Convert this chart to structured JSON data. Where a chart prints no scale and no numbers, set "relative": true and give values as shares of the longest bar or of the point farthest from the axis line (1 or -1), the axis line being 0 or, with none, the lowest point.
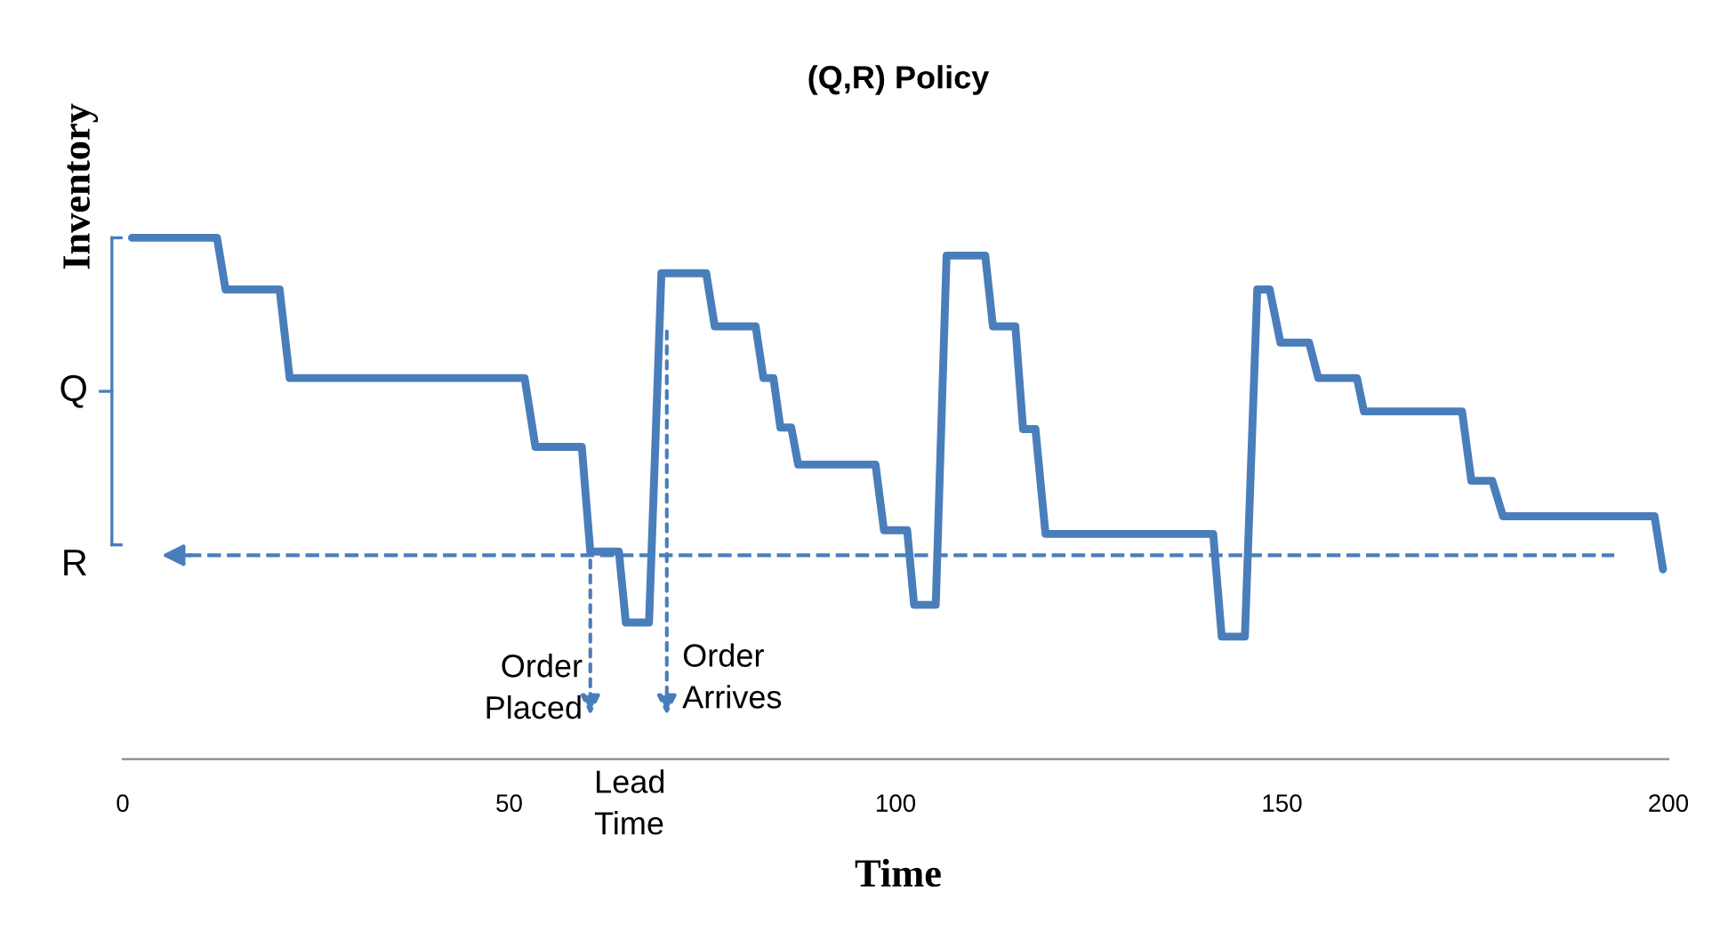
{
  "chart_data": {
    "type": "line",
    "title": "(Q,R) Policy",
    "xlabel": "Time",
    "ylabel": "Inventory",
    "relative": true,
    "xlim": [
      0,
      200
    ],
    "xticks": [
      0,
      50,
      100,
      150,
      200
    ],
    "series": [
      {
        "color": "#4a7ebb",
        "x": [
          1.2,
          12.2,
          13.3,
          20.3,
          21.6,
          52.0,
          53.4,
          59.4,
          60.5,
          64.2,
          65.1,
          68.1,
          69.7,
          75.5,
          76.6,
          81.9,
          82.9,
          84.2,
          85.1,
          86.5,
          87.4,
          97.4,
          98.5,
          101.5,
          102.4,
          105.2,
          106.6,
          111.6,
          112.6,
          115.5,
          116.5,
          118.1,
          119.4,
          141.1,
          142.2,
          145.2,
          146.8,
          148.4,
          149.8,
          153.5,
          154.7,
          159.7,
          160.6,
          173.3,
          174.5,
          177.2,
          178.6,
          198.2,
          199.3
        ],
        "values": [
          1.0,
          1.0,
          0.901,
          0.901,
          0.731,
          0.731,
          0.599,
          0.599,
          0.398,
          0.398,
          0.262,
          0.262,
          0.932,
          0.932,
          0.83,
          0.83,
          0.731,
          0.731,
          0.636,
          0.636,
          0.565,
          0.565,
          0.439,
          0.439,
          0.296,
          0.296,
          0.966,
          0.966,
          0.83,
          0.83,
          0.633,
          0.633,
          0.432,
          0.432,
          0.235,
          0.235,
          0.901,
          0.901,
          0.799,
          0.799,
          0.731,
          0.731,
          0.667,
          0.667,
          0.534,
          0.534,
          0.466,
          0.466,
          0.364
        ]
      }
    ],
    "ref_lines": [
      {
        "axis": "y",
        "value": 0.391,
        "label": "R",
        "color": "#4a7ebb",
        "line_style": "dashed"
      }
    ],
    "annotations": [
      "Q",
      "Order\nPlaced",
      "Order\nArrives",
      "Lead\nTime"
    ],
    "grid": false,
    "legend": false
  }
}
